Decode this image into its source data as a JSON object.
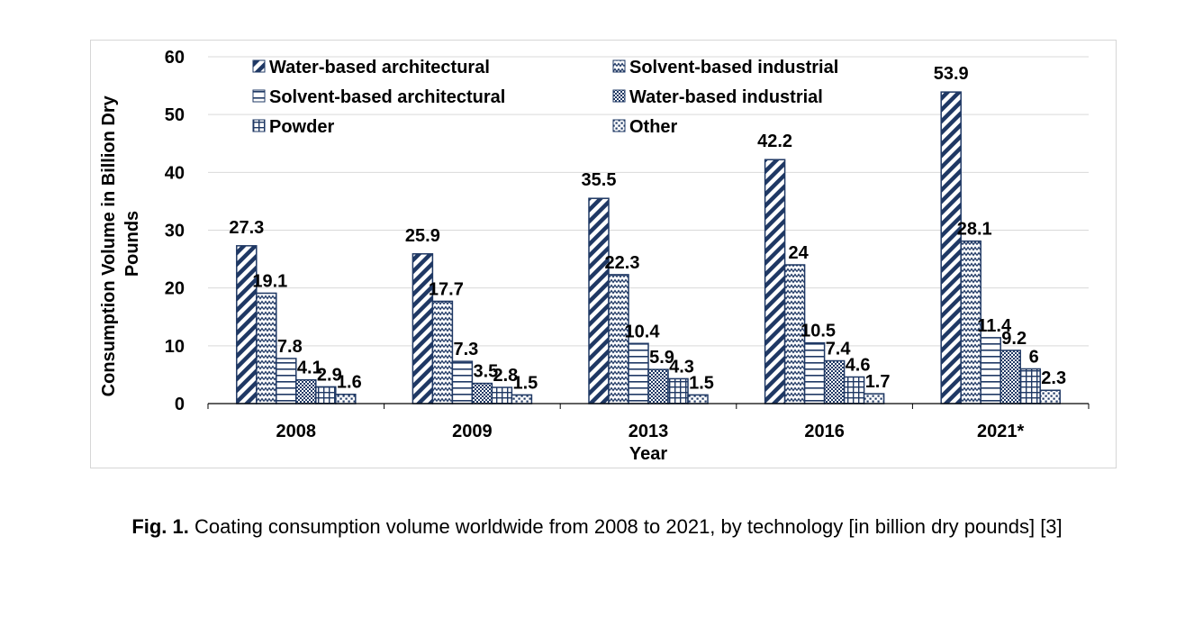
{
  "chart_data": {
    "type": "bar",
    "categories": [
      "2008",
      "2009",
      "2013",
      "2016",
      "2021*"
    ],
    "series": [
      {
        "name": "Water-based architectural",
        "values": [
          27.3,
          25.9,
          35.5,
          42.2,
          53.9
        ],
        "pattern": "diagonal-stripes"
      },
      {
        "name": "Solvent-based industrial",
        "values": [
          19.1,
          17.7,
          22.3,
          24,
          28.1
        ],
        "pattern": "zigzag"
      },
      {
        "name": "Solvent-based architectural",
        "values": [
          7.8,
          7.3,
          10.4,
          10.5,
          11.4
        ],
        "pattern": "horizontal-lines"
      },
      {
        "name": "Water-based industrial",
        "values": [
          4.1,
          3.5,
          5.9,
          7.4,
          9.2
        ],
        "pattern": "checker"
      },
      {
        "name": "Powder",
        "values": [
          2.9,
          2.8,
          4.3,
          4.6,
          6
        ],
        "pattern": "grid"
      },
      {
        "name": "Other",
        "values": [
          1.6,
          1.5,
          1.5,
          1.7,
          2.3
        ],
        "pattern": "dots"
      }
    ],
    "data_labels": [
      [
        "27.3",
        "19.1",
        "7.8",
        "4.1",
        "2.9",
        "1.6"
      ],
      [
        "25.9",
        "17.7",
        "7.3",
        "3.5",
        "2.8",
        "1.5"
      ],
      [
        "35.5",
        "22.3",
        "10.4",
        "5.9",
        "4.3",
        "1.5"
      ],
      [
        "42.2",
        "24",
        "10.5",
        "7.4",
        "4.6",
        "1.7"
      ],
      [
        "53.9",
        "28.1",
        "11.4",
        "9.2",
        "6",
        "2.3"
      ]
    ],
    "title": "",
    "xlabel": "Year",
    "ylabel": "Consumption Volume in Billion Dry Pounds",
    "ylim": [
      0,
      60
    ],
    "yticks": [
      0,
      10,
      20,
      30,
      40,
      50,
      60
    ],
    "grid": true,
    "legend_position": "top",
    "bar_color": "#1f3864"
  },
  "caption": {
    "label": "Fig. 1.",
    "text": " Coating consumption volume worldwide from 2008 to 2021, by technology [in billion dry pounds] [3]"
  }
}
